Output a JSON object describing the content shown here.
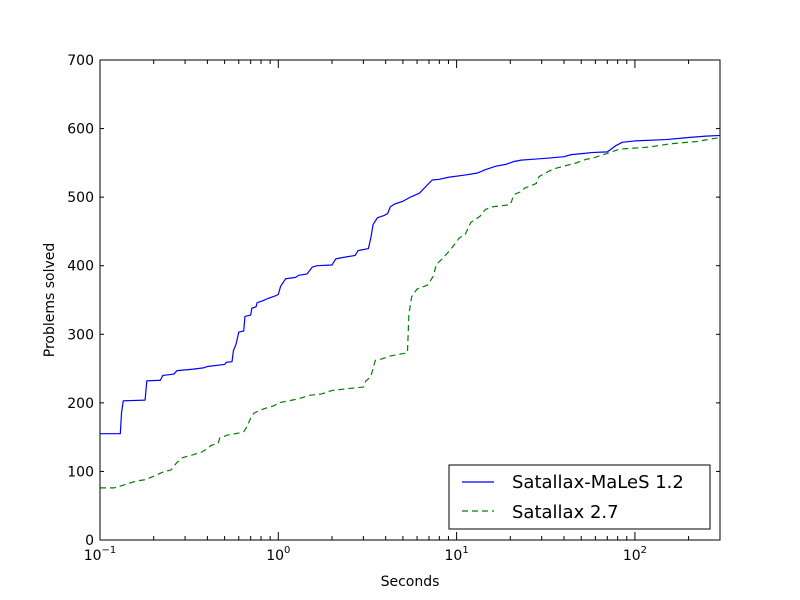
{
  "chart_data": {
    "type": "line",
    "xlabel": "Seconds",
    "ylabel": "Problems solved",
    "xscale": "log",
    "xlim": [
      0.1,
      300
    ],
    "ylim": [
      0,
      700
    ],
    "x_ticks": [
      {
        "value": 0.1,
        "base": "10",
        "exp": "−1"
      },
      {
        "value": 1,
        "base": "10",
        "exp": "0"
      },
      {
        "value": 10,
        "base": "10",
        "exp": "1"
      },
      {
        "value": 100,
        "base": "10",
        "exp": "2"
      }
    ],
    "y_ticks": [
      {
        "value": 0,
        "label": "0"
      },
      {
        "value": 100,
        "label": "100"
      },
      {
        "value": 200,
        "label": "200"
      },
      {
        "value": 300,
        "label": "300"
      },
      {
        "value": 400,
        "label": "400"
      },
      {
        "value": 500,
        "label": "500"
      },
      {
        "value": 600,
        "label": "600"
      },
      {
        "value": 700,
        "label": "700"
      }
    ],
    "legend_position": "lower-right",
    "series": [
      {
        "name": "Satallax-MaLeS 1.2",
        "color": "#0000ff",
        "style": "solid",
        "points": [
          [
            0.1,
            155
          ],
          [
            0.13,
            155
          ],
          [
            0.132,
            185
          ],
          [
            0.135,
            203
          ],
          [
            0.179,
            204
          ],
          [
            0.183,
            232
          ],
          [
            0.218,
            233
          ],
          [
            0.225,
            240
          ],
          [
            0.26,
            242
          ],
          [
            0.27,
            247
          ],
          [
            0.33,
            249
          ],
          [
            0.38,
            251
          ],
          [
            0.4,
            253
          ],
          [
            0.5,
            256
          ],
          [
            0.51,
            259
          ],
          [
            0.55,
            260
          ],
          [
            0.56,
            276
          ],
          [
            0.58,
            286
          ],
          [
            0.6,
            303
          ],
          [
            0.64,
            305
          ],
          [
            0.65,
            326
          ],
          [
            0.7,
            328
          ],
          [
            0.71,
            338
          ],
          [
            0.75,
            340
          ],
          [
            0.76,
            346
          ],
          [
            0.82,
            349
          ],
          [
            0.87,
            352
          ],
          [
            0.96,
            356
          ],
          [
            1.0,
            358
          ],
          [
            1.03,
            370
          ],
          [
            1.08,
            378
          ],
          [
            1.1,
            381
          ],
          [
            1.25,
            383
          ],
          [
            1.3,
            386
          ],
          [
            1.45,
            388
          ],
          [
            1.55,
            398
          ],
          [
            1.65,
            400
          ],
          [
            2.0,
            401
          ],
          [
            2.1,
            410
          ],
          [
            2.3,
            412
          ],
          [
            2.7,
            415
          ],
          [
            2.8,
            422
          ],
          [
            3.2,
            425
          ],
          [
            3.3,
            440
          ],
          [
            3.4,
            460
          ],
          [
            3.6,
            470
          ],
          [
            3.9,
            473
          ],
          [
            4.1,
            476
          ],
          [
            4.25,
            486
          ],
          [
            4.5,
            490
          ],
          [
            5.0,
            494
          ],
          [
            5.5,
            500
          ],
          [
            6.2,
            506
          ],
          [
            6.8,
            517
          ],
          [
            7.3,
            525
          ],
          [
            8.0,
            526
          ],
          [
            9.0,
            529
          ],
          [
            11.0,
            532
          ],
          [
            13.0,
            535
          ],
          [
            14.5,
            540
          ],
          [
            16.5,
            545
          ],
          [
            19.0,
            548
          ],
          [
            21.0,
            552
          ],
          [
            23.0,
            554
          ],
          [
            26.0,
            555
          ],
          [
            33.0,
            557
          ],
          [
            40.0,
            559
          ],
          [
            44.0,
            562
          ],
          [
            53.0,
            564
          ],
          [
            57.0,
            565
          ],
          [
            70.0,
            566
          ],
          [
            78.0,
            575
          ],
          [
            85.0,
            580
          ],
          [
            100.0,
            582
          ],
          [
            150.0,
            584
          ],
          [
            200.0,
            587
          ],
          [
            250.0,
            589
          ],
          [
            300.0,
            590
          ]
        ]
      },
      {
        "name": "Satallax 2.7",
        "color": "#008000",
        "style": "dashed",
        "points": [
          [
            0.1,
            76
          ],
          [
            0.12,
            76
          ],
          [
            0.135,
            80
          ],
          [
            0.16,
            86
          ],
          [
            0.18,
            88
          ],
          [
            0.2,
            93
          ],
          [
            0.23,
            100
          ],
          [
            0.25,
            102
          ],
          [
            0.27,
            113
          ],
          [
            0.29,
            120
          ],
          [
            0.32,
            123
          ],
          [
            0.37,
            128
          ],
          [
            0.4,
            133
          ],
          [
            0.42,
            138
          ],
          [
            0.46,
            141
          ],
          [
            0.47,
            149
          ],
          [
            0.52,
            153
          ],
          [
            0.6,
            156
          ],
          [
            0.64,
            158
          ],
          [
            0.67,
            166
          ],
          [
            0.7,
            178
          ],
          [
            0.73,
            185
          ],
          [
            0.8,
            190
          ],
          [
            0.95,
            196
          ],
          [
            1.0,
            200
          ],
          [
            1.15,
            203
          ],
          [
            1.3,
            206
          ],
          [
            1.5,
            211
          ],
          [
            1.75,
            213
          ],
          [
            2.0,
            218
          ],
          [
            2.5,
            221
          ],
          [
            3.0,
            223
          ],
          [
            3.1,
            232
          ],
          [
            3.3,
            238
          ],
          [
            3.5,
            262
          ],
          [
            3.8,
            264
          ],
          [
            4.2,
            268
          ],
          [
            4.8,
            271
          ],
          [
            5.3,
            273
          ],
          [
            5.4,
            330
          ],
          [
            5.6,
            355
          ],
          [
            6.0,
            366
          ],
          [
            6.9,
            372
          ],
          [
            7.4,
            385
          ],
          [
            7.7,
            402
          ],
          [
            8.3,
            410
          ],
          [
            9.0,
            420
          ],
          [
            9.8,
            432
          ],
          [
            10.3,
            440
          ],
          [
            11.2,
            446
          ],
          [
            12.0,
            463
          ],
          [
            13.5,
            472
          ],
          [
            14.5,
            482
          ],
          [
            16.0,
            486
          ],
          [
            20.0,
            489
          ],
          [
            21.0,
            504
          ],
          [
            23.0,
            508
          ],
          [
            24.0,
            513
          ],
          [
            28.0,
            520
          ],
          [
            29.0,
            530
          ],
          [
            33.0,
            538
          ],
          [
            36.0,
            542
          ],
          [
            41.0,
            546
          ],
          [
            47.0,
            550
          ],
          [
            53.0,
            555
          ],
          [
            58.0,
            557
          ],
          [
            65.0,
            561
          ],
          [
            72.0,
            565
          ],
          [
            82.0,
            570
          ],
          [
            120.0,
            573
          ],
          [
            160.0,
            578
          ],
          [
            220.0,
            581
          ],
          [
            300.0,
            587
          ]
        ]
      }
    ]
  }
}
